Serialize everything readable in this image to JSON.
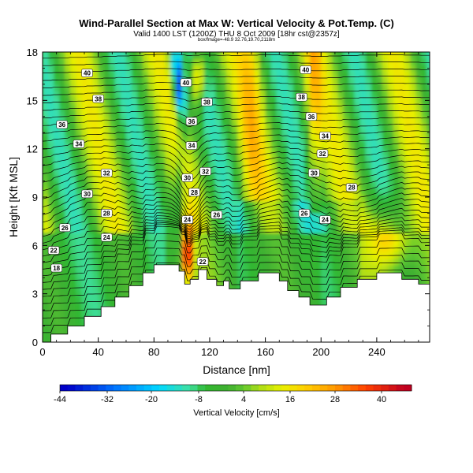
{
  "header": {
    "title": "Wind-Parallel Section at Max W: Vertical Velocity & Pot.Temp. (C)",
    "valid_line": "Valid 1400 LST (1200Z) THU 8 Oct 2009 [18hr cst@2357z]",
    "info_line": "box/fmage=-48.9 32.76,19.70,2118m"
  },
  "chart_data": {
    "type": "heatmap",
    "xlabel": "Distance [nm]",
    "ylabel": "Height [Kft MSL]",
    "xlim": [
      0,
      278
    ],
    "ylim": [
      0,
      18
    ],
    "x_ticks": [
      0,
      40,
      80,
      120,
      160,
      200,
      240
    ],
    "y_ticks": [
      0,
      3,
      6,
      9,
      12,
      15,
      18
    ],
    "colorbar": {
      "label": "Vertical Velocity [cm/s]",
      "ticks": [
        -44,
        -32,
        -20,
        -8,
        4,
        16,
        28,
        40
      ],
      "colors": [
        "#0000c8",
        "#0030ff",
        "#0080ff",
        "#00c8ff",
        "#00e8e0",
        "#30e8a0",
        "#50d070",
        "#30b030",
        "#50c030",
        "#90d020",
        "#c8e000",
        "#f0f000",
        "#ffd000",
        "#ffa000",
        "#ff7000",
        "#ff3000",
        "#e00000",
        "#c00020"
      ]
    },
    "terrain_nm_kft": [
      [
        0,
        0
      ],
      [
        6,
        0
      ],
      [
        6,
        0.5
      ],
      [
        18,
        0.5
      ],
      [
        18,
        1
      ],
      [
        30,
        1
      ],
      [
        30,
        1.6
      ],
      [
        42,
        1.6
      ],
      [
        42,
        2.2
      ],
      [
        52,
        2.2
      ],
      [
        52,
        2.8
      ],
      [
        62,
        2.8
      ],
      [
        62,
        3.5
      ],
      [
        72,
        3.5
      ],
      [
        72,
        4.3
      ],
      [
        80,
        4.3
      ],
      [
        80,
        4.8
      ],
      [
        98,
        4.8
      ],
      [
        98,
        4.4
      ],
      [
        102,
        4.4
      ],
      [
        102,
        3.6
      ],
      [
        106,
        3.6
      ],
      [
        106,
        3.9
      ],
      [
        112,
        3.9
      ],
      [
        112,
        4.5
      ],
      [
        118,
        4.5
      ],
      [
        118,
        3.9
      ],
      [
        125,
        3.9
      ],
      [
        125,
        3.5
      ],
      [
        130,
        3.5
      ],
      [
        130,
        3.8
      ],
      [
        134,
        3.8
      ],
      [
        134,
        3.3
      ],
      [
        142,
        3.3
      ],
      [
        142,
        3.8
      ],
      [
        155,
        3.8
      ],
      [
        155,
        4.3
      ],
      [
        170,
        4.3
      ],
      [
        170,
        3.8
      ],
      [
        176,
        3.8
      ],
      [
        176,
        3.2
      ],
      [
        184,
        3.2
      ],
      [
        184,
        2.8
      ],
      [
        192,
        2.8
      ],
      [
        192,
        2.3
      ],
      [
        204,
        2.3
      ],
      [
        204,
        2.8
      ],
      [
        214,
        2.8
      ],
      [
        214,
        3.4
      ],
      [
        226,
        3.4
      ],
      [
        226,
        3.9
      ],
      [
        240,
        3.9
      ],
      [
        240,
        4.3
      ],
      [
        258,
        4.3
      ],
      [
        258,
        3.9
      ],
      [
        270,
        3.9
      ],
      [
        270,
        3.6
      ],
      [
        278,
        3.6
      ],
      [
        278,
        0
      ]
    ],
    "contour_labels": [
      {
        "text": "40",
        "x": 32,
        "y": 16.7
      },
      {
        "text": "40",
        "x": 103,
        "y": 16.1
      },
      {
        "text": "38",
        "x": 118,
        "y": 14.9
      },
      {
        "text": "36",
        "x": 107,
        "y": 13.7
      },
      {
        "text": "38",
        "x": 40,
        "y": 15.1
      },
      {
        "text": "36",
        "x": 14,
        "y": 13.5
      },
      {
        "text": "34",
        "x": 26,
        "y": 12.3
      },
      {
        "text": "34",
        "x": 107,
        "y": 12.2
      },
      {
        "text": "32",
        "x": 46,
        "y": 10.5
      },
      {
        "text": "32",
        "x": 117,
        "y": 10.6
      },
      {
        "text": "30",
        "x": 104,
        "y": 10.2
      },
      {
        "text": "30",
        "x": 32,
        "y": 9.2
      },
      {
        "text": "28",
        "x": 109,
        "y": 9.3
      },
      {
        "text": "28",
        "x": 46,
        "y": 8.0
      },
      {
        "text": "26",
        "x": 125,
        "y": 7.9
      },
      {
        "text": "26",
        "x": 16,
        "y": 7.1
      },
      {
        "text": "24",
        "x": 46,
        "y": 6.5
      },
      {
        "text": "24",
        "x": 104,
        "y": 7.6
      },
      {
        "text": "22",
        "x": 8,
        "y": 5.7
      },
      {
        "text": "22",
        "x": 115,
        "y": 5.0
      },
      {
        "text": "18",
        "x": 10,
        "y": 4.6
      },
      {
        "text": "40",
        "x": 189,
        "y": 16.9
      },
      {
        "text": "38",
        "x": 186,
        "y": 15.2
      },
      {
        "text": "36",
        "x": 193,
        "y": 14.0
      },
      {
        "text": "34",
        "x": 203,
        "y": 12.8
      },
      {
        "text": "32",
        "x": 201,
        "y": 11.7
      },
      {
        "text": "30",
        "x": 195,
        "y": 10.5
      },
      {
        "text": "28",
        "x": 222,
        "y": 9.6
      },
      {
        "text": "26",
        "x": 188,
        "y": 8.0
      },
      {
        "text": "24",
        "x": 203,
        "y": 7.6
      }
    ],
    "isentrope_levels_C": [
      18,
      20,
      22,
      24,
      26,
      28,
      30,
      32,
      34,
      36,
      38,
      40
    ],
    "grid": false
  }
}
